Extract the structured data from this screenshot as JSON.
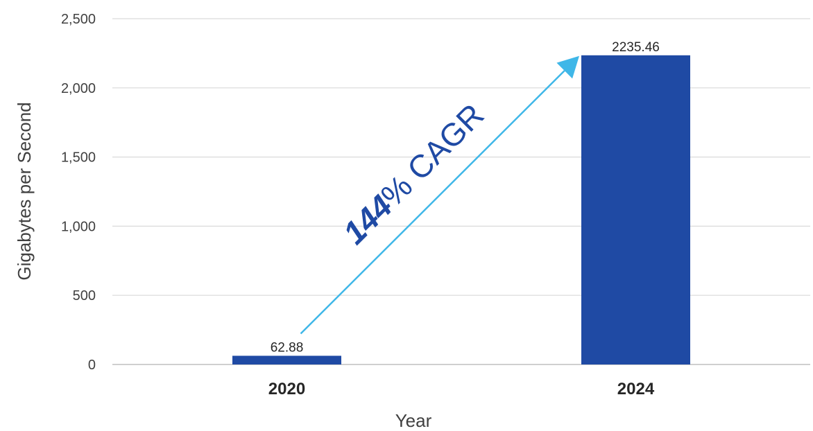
{
  "chart_data": {
    "type": "bar",
    "categories": [
      "2020",
      "2024"
    ],
    "values": [
      62.88,
      2235.46
    ],
    "data_labels": [
      "62.88",
      "2235.46"
    ],
    "xlabel": "Year",
    "ylabel": "Gigabytes per Second",
    "ylim": [
      0,
      2500
    ],
    "yticks": [
      0,
      500,
      1000,
      1500,
      2000,
      2500
    ],
    "ytick_labels": [
      "0",
      "500",
      "1,000",
      "1,500",
      "2,000",
      "2,500"
    ],
    "grid": true,
    "legend": "none",
    "annotation": {
      "bold_text": "144",
      "text": "% CAGR",
      "arrow_from": "2020",
      "arrow_to": "2024"
    },
    "colors": {
      "bar": "#1f4aa4",
      "arrow": "#3fb7e8",
      "annotation_text": "#1f4aa4",
      "grid": "#d9d9d9"
    }
  }
}
